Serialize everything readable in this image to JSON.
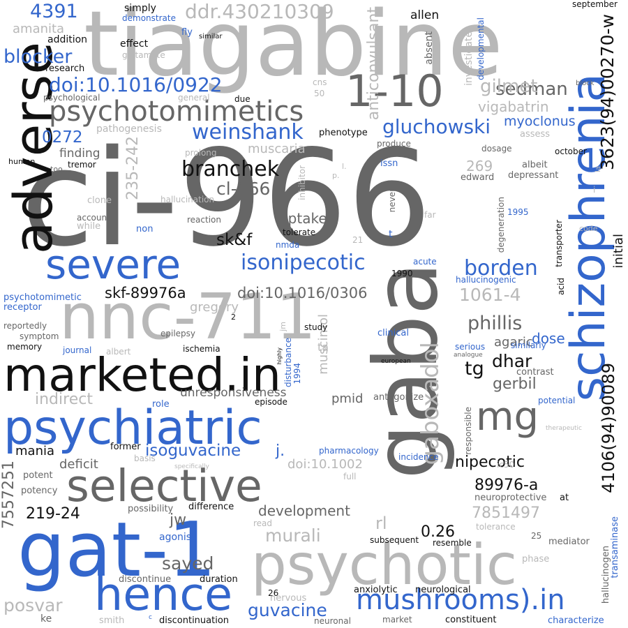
{
  "palette": {
    "black": "#111111",
    "dark_gray": "#666666",
    "light_gray": "#b8b8b8",
    "blue": "#3366cc",
    "background": "#ffffff"
  },
  "words": [
    {
      "text": "ci-966",
      "color": "dark_gray"
    },
    {
      "text": "tiagabine",
      "color": "light_gray"
    },
    {
      "text": "gaba",
      "color": "dark_gray"
    },
    {
      "text": "adverse",
      "color": "black"
    },
    {
      "text": "gat-1",
      "color": "blue"
    },
    {
      "text": "schizophrenia",
      "color": "blue"
    },
    {
      "text": "nnc-711",
      "color": "light_gray"
    },
    {
      "text": "psychotic",
      "color": "light_gray"
    },
    {
      "text": "marketed.in",
      "color": "black"
    },
    {
      "text": "psychiatric",
      "color": "blue"
    },
    {
      "text": "hence",
      "color": "blue"
    },
    {
      "text": "selective",
      "color": "dark_gray"
    },
    {
      "text": "severe",
      "color": "blue"
    },
    {
      "text": "1-10",
      "color": "dark_gray"
    },
    {
      "text": "mg",
      "color": "dark_gray"
    },
    {
      "text": "psychotomimetics",
      "color": "dark_gray"
    },
    {
      "text": "3623(94)00270-w",
      "color": "black"
    },
    {
      "text": "4106(94)90089",
      "color": "black"
    },
    {
      "text": "mushrooms).in",
      "color": "blue"
    },
    {
      "text": "gaboxadol",
      "color": "light_gray"
    },
    {
      "text": "doi:10.1016/0922",
      "color": "blue"
    },
    {
      "text": "ddr.430210309",
      "color": "light_gray"
    },
    {
      "text": "isonipecotic",
      "color": "blue"
    },
    {
      "text": "weinshank",
      "color": "blue"
    },
    {
      "text": "gluchowski",
      "color": "blue"
    },
    {
      "text": "branchek",
      "color": "black"
    },
    {
      "text": "borden",
      "color": "blue"
    },
    {
      "text": "blocker",
      "color": "blue"
    },
    {
      "text": "sedman",
      "color": "dark_gray"
    },
    {
      "text": "gilmet",
      "color": "light_gray"
    },
    {
      "text": "4391",
      "color": "blue"
    },
    {
      "text": "0272",
      "color": "blue"
    },
    {
      "text": "cl-966",
      "color": "dark_gray"
    },
    {
      "text": "235-242",
      "color": "light_gray"
    },
    {
      "text": "anticonvulsant",
      "color": "light_gray"
    },
    {
      "text": "7557251",
      "color": "dark_gray"
    },
    {
      "text": "phillis",
      "color": "dark_gray"
    },
    {
      "text": "1061-4",
      "color": "light_gray"
    },
    {
      "text": "skf-89976a",
      "color": "black"
    },
    {
      "text": "doi:10.1016/0306",
      "color": "dark_gray"
    },
    {
      "text": "isoguvacine",
      "color": "blue"
    },
    {
      "text": "guvacine",
      "color": "blue"
    },
    {
      "text": "nipecotic",
      "color": "black"
    },
    {
      "text": "89976-a",
      "color": "black"
    },
    {
      "text": "7851497",
      "color": "light_gray"
    },
    {
      "text": "dhar",
      "color": "black"
    },
    {
      "text": "gerbil",
      "color": "dark_gray"
    },
    {
      "text": "tg",
      "color": "black"
    },
    {
      "text": "murali",
      "color": "light_gray"
    },
    {
      "text": "sayed",
      "color": "dark_gray"
    },
    {
      "text": "posvar",
      "color": "light_gray"
    },
    {
      "text": "219-24",
      "color": "black"
    },
    {
      "text": "0.26",
      "color": "black"
    },
    {
      "text": "rl",
      "color": "light_gray"
    },
    {
      "text": "jw",
      "color": "dark_gray"
    },
    {
      "text": "j.",
      "color": "blue"
    },
    {
      "text": "sk&f",
      "color": "black"
    },
    {
      "text": "uptake",
      "color": "dark_gray"
    },
    {
      "text": "indirect",
      "color": "light_gray"
    },
    {
      "text": "muscimol",
      "color": "light_gray"
    },
    {
      "text": "muscaria",
      "color": "light_gray"
    },
    {
      "text": "development",
      "color": "dark_gray"
    },
    {
      "text": "deficit",
      "color": "dark_gray"
    },
    {
      "text": "mania",
      "color": "black"
    },
    {
      "text": "unresponsiveness",
      "color": "dark_gray"
    },
    {
      "text": "vigabatrin",
      "color": "light_gray"
    },
    {
      "text": "myoclonus",
      "color": "blue"
    },
    {
      "text": "agaric",
      "color": "dark_gray"
    },
    {
      "text": "dose",
      "color": "blue"
    },
    {
      "text": "initial",
      "color": "black"
    },
    {
      "text": "gregory",
      "color": "light_gray"
    },
    {
      "text": "pmid",
      "color": "dark_gray"
    },
    {
      "text": "doi:10.1002",
      "color": "light_gray"
    },
    {
      "text": "amanita",
      "color": "light_gray"
    },
    {
      "text": "allen",
      "color": "black"
    },
    {
      "text": "finding",
      "color": "dark_gray"
    },
    {
      "text": "269",
      "color": "light_gray"
    },
    {
      "text": "edward",
      "color": "dark_gray"
    },
    {
      "text": "phenotype",
      "color": "black"
    },
    {
      "text": "psychotomimetic",
      "color": "blue"
    },
    {
      "text": "receptor",
      "color": "blue"
    },
    {
      "text": "hallucinogenic",
      "color": "blue"
    },
    {
      "text": "transaminase",
      "color": "blue"
    },
    {
      "text": "hallucinogen",
      "color": "dark_gray"
    },
    {
      "text": "developmental",
      "color": "blue"
    },
    {
      "text": "investigate",
      "color": "light_gray"
    },
    {
      "text": "absent",
      "color": "dark_gray"
    },
    {
      "text": "demonstrate",
      "color": "blue"
    },
    {
      "text": "simply",
      "color": "black"
    },
    {
      "text": "addition",
      "color": "black"
    },
    {
      "text": "effect",
      "color": "black"
    },
    {
      "text": "glutamate",
      "color": "light_gray"
    },
    {
      "text": "research",
      "color": "black"
    },
    {
      "text": "psychological",
      "color": "dark_gray"
    },
    {
      "text": "general",
      "color": "light_gray"
    },
    {
      "text": "due",
      "color": "black"
    },
    {
      "text": "cns",
      "color": "light_gray"
    },
    {
      "text": "50",
      "color": "light_gray"
    },
    {
      "text": "fly",
      "color": "blue"
    },
    {
      "text": "similar",
      "color": "black"
    },
    {
      "text": "september",
      "color": "black"
    },
    {
      "text": "block",
      "color": "dark_gray"
    },
    {
      "text": "pathogenesis",
      "color": "light_gray"
    },
    {
      "text": "assess",
      "color": "light_gray"
    },
    {
      "text": "produce",
      "color": "dark_gray"
    },
    {
      "text": "dosage",
      "color": "dark_gray"
    },
    {
      "text": "october",
      "color": "black"
    },
    {
      "text": "albeit",
      "color": "dark_gray"
    },
    {
      "text": "depressant",
      "color": "dark_gray"
    },
    {
      "text": "prolong",
      "color": "light_gray"
    },
    {
      "text": "human",
      "color": "black"
    },
    {
      "text": "too",
      "color": "dark_gray"
    },
    {
      "text": "tremor",
      "color": "black"
    },
    {
      "text": "issn",
      "color": "blue"
    },
    {
      "text": "l.",
      "color": "light_gray"
    },
    {
      "text": "p.",
      "color": "light_gray"
    },
    {
      "text": "clone",
      "color": "light_gray"
    },
    {
      "text": "hallucination",
      "color": "light_gray"
    },
    {
      "text": "inhibitor",
      "color": "light_gray"
    },
    {
      "text": "never",
      "color": "dark_gray"
    },
    {
      "text": "far",
      "color": "light_gray"
    },
    {
      "text": "1995",
      "color": "blue"
    },
    {
      "text": "code",
      "color": "light_gray"
    },
    {
      "text": "account",
      "color": "dark_gray"
    },
    {
      "text": "while",
      "color": "light_gray"
    },
    {
      "text": "reaction",
      "color": "dark_gray"
    },
    {
      "text": "non",
      "color": "blue"
    },
    {
      "text": "tolerate",
      "color": "black"
    },
    {
      "text": "nmda",
      "color": "blue"
    },
    {
      "text": "21",
      "color": "light_gray"
    },
    {
      "text": "t",
      "color": "blue"
    },
    {
      "text": "degeneration",
      "color": "dark_gray"
    },
    {
      "text": "transporter",
      "color": "black"
    },
    {
      "text": "acute",
      "color": "blue"
    },
    {
      "text": "1990",
      "color": "black"
    },
    {
      "text": "acid",
      "color": "black"
    },
    {
      "text": "reportedly",
      "color": "dark_gray"
    },
    {
      "text": "symptom",
      "color": "dark_gray"
    },
    {
      "text": "memory",
      "color": "black"
    },
    {
      "text": "journal",
      "color": "blue"
    },
    {
      "text": "albert",
      "color": "light_gray"
    },
    {
      "text": "epilepsy",
      "color": "dark_gray"
    },
    {
      "text": "ischemia",
      "color": "black"
    },
    {
      "text": "highly",
      "color": "black"
    },
    {
      "text": "jm",
      "color": "light_gray"
    },
    {
      "text": "2",
      "color": "black"
    },
    {
      "text": "disturbance",
      "color": "blue"
    },
    {
      "text": "1994",
      "color": "blue"
    },
    {
      "text": "study",
      "color": "black"
    },
    {
      "text": "ta",
      "color": "light_gray"
    },
    {
      "text": "clinical",
      "color": "blue"
    },
    {
      "text": "serious",
      "color": "blue"
    },
    {
      "text": "similarly",
      "color": "blue"
    },
    {
      "text": "analogue",
      "color": "dark_gray"
    },
    {
      "text": "european",
      "color": "black"
    },
    {
      "text": "contrast",
      "color": "dark_gray"
    },
    {
      "text": "episode",
      "color": "black"
    },
    {
      "text": "antagonize",
      "color": "dark_gray"
    },
    {
      "text": "potential",
      "color": "blue"
    },
    {
      "text": "role",
      "color": "blue"
    },
    {
      "text": "responsible",
      "color": "dark_gray"
    },
    {
      "text": "therapeutic",
      "color": "light_gray"
    },
    {
      "text": "pharmacology",
      "color": "blue"
    },
    {
      "text": "former",
      "color": "black"
    },
    {
      "text": "basis",
      "color": "light_gray"
    },
    {
      "text": "incidence",
      "color": "blue"
    },
    {
      "text": "ic50",
      "color": "light_gray"
    },
    {
      "text": "specifically",
      "color": "light_gray"
    },
    {
      "text": "full",
      "color": "light_gray"
    },
    {
      "text": "potent",
      "color": "dark_gray"
    },
    {
      "text": "potency",
      "color": "dark_gray"
    },
    {
      "text": "possibility",
      "color": "dark_gray"
    },
    {
      "text": "difference",
      "color": "black"
    },
    {
      "text": "neuroprotective",
      "color": "dark_gray"
    },
    {
      "text": "at",
      "color": "black"
    },
    {
      "text": "agonist",
      "color": "blue"
    },
    {
      "text": "read",
      "color": "light_gray"
    },
    {
      "text": "tolerance",
      "color": "light_gray"
    },
    {
      "text": "25",
      "color": "dark_gray"
    },
    {
      "text": "mediator",
      "color": "dark_gray"
    },
    {
      "text": "subsequent",
      "color": "black"
    },
    {
      "text": "resemble",
      "color": "black"
    },
    {
      "text": "phase",
      "color": "light_gray"
    },
    {
      "text": "discontinue",
      "color": "dark_gray"
    },
    {
      "text": "duration",
      "color": "black"
    },
    {
      "text": "anxiolytic",
      "color": "black"
    },
    {
      "text": "neurological",
      "color": "black"
    },
    {
      "text": "26",
      "color": "black"
    },
    {
      "text": "nervous",
      "color": "light_gray"
    },
    {
      "text": "ke",
      "color": "dark_gray"
    },
    {
      "text": "smith",
      "color": "light_gray"
    },
    {
      "text": "c",
      "color": "blue"
    },
    {
      "text": "discontinuation",
      "color": "black"
    },
    {
      "text": "neuronal",
      "color": "dark_gray"
    },
    {
      "text": "market",
      "color": "dark_gray"
    },
    {
      "text": "constituent",
      "color": "black"
    },
    {
      "text": "characterize",
      "color": "blue"
    },
    {
      "text": "la",
      "color": "light_gray"
    },
    {
      "text": "i",
      "color": "light_gray"
    }
  ]
}
